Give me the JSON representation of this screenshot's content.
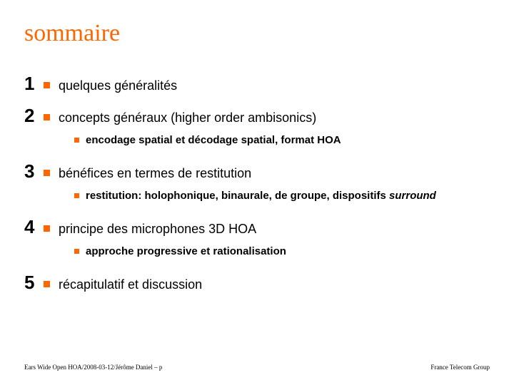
{
  "title_text": "sommaire",
  "title_color": "#ff6600",
  "bullet_color": "#ff6600",
  "sub_bullet_color": "#ff6600",
  "items": [
    {
      "num": "1",
      "text": "quelques généralités",
      "sub": null
    },
    {
      "num": "2",
      "text": "concepts généraux (higher order ambisonics)",
      "sub": {
        "text": "encodage spatial et décodage spatial, format HOA",
        "ital": null
      }
    },
    {
      "num": "3",
      "text": "bénéfices en termes de restitution",
      "sub": {
        "text": "restitution: holophonique, binaurale, de groupe, dispositifs ",
        "ital": "surround"
      }
    },
    {
      "num": "4",
      "text": "principe des microphones 3D HOA",
      "sub": {
        "text": "approche progressive et rationalisation",
        "ital": null
      }
    },
    {
      "num": "5",
      "text": "récapitulatif et discussion",
      "sub": null
    }
  ],
  "footer_left": "Ears Wide Open HOA/2008-03-12/Jérôme Daniel – p",
  "footer_right": "France Telecom Group"
}
